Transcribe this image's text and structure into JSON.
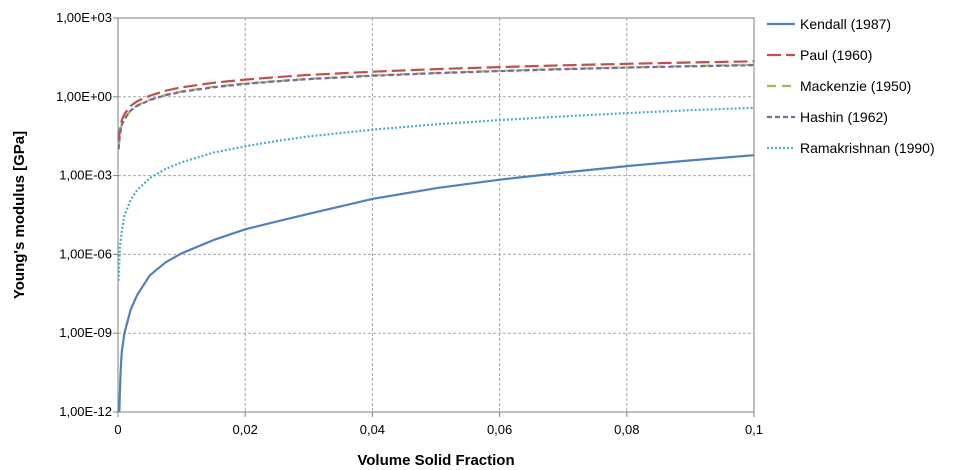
{
  "chart_data": {
    "type": "line",
    "xlabel": "Volume Solid Fraction",
    "ylabel": "Young's modulus [GPa]",
    "x_scale": "linear",
    "y_scale": "log",
    "xlim": [
      0,
      0.1
    ],
    "ylim": [
      1e-12,
      1000
    ],
    "x_ticks": [
      0,
      0.02,
      0.04,
      0.06,
      0.08,
      0.1
    ],
    "x_tick_labels": [
      "0",
      "0,02",
      "0,04",
      "0,06",
      "0,08",
      "0,1"
    ],
    "y_ticks": [
      1e-12,
      1e-09,
      1e-06,
      0.001,
      1,
      1000
    ],
    "y_tick_labels": [
      "1,00E-12",
      "1,00E-09",
      "1,00E-06",
      "1,00E-03",
      "1,00E+00",
      "1,00E+03"
    ],
    "grid": true,
    "legend_position": "right",
    "series": [
      {
        "name": "Kendall (1987)",
        "color": "#4f81bd",
        "dash": "solid",
        "x": [
          0.0002,
          0.0004,
          0.0006,
          0.001,
          0.002,
          0.003,
          0.005,
          0.0075,
          0.01,
          0.015,
          0.02,
          0.025,
          0.03,
          0.04,
          0.05,
          0.06,
          0.07,
          0.08,
          0.09,
          0.1
        ],
        "y": [
          1e-12,
          3e-11,
          2e-10,
          1e-09,
          8e-09,
          2.8e-08,
          1.6e-07,
          5e-07,
          1.1e-06,
          3.5e-06,
          9e-06,
          1.8e-05,
          3.5e-05,
          0.00013,
          0.00033,
          0.0007,
          0.0013,
          0.0023,
          0.0038,
          0.006
        ]
      },
      {
        "name": "Paul (1960)",
        "color": "#c0504d",
        "dash": "long-dash",
        "x": [
          0.0001,
          0.0003,
          0.0006,
          0.001,
          0.002,
          0.003,
          0.005,
          0.0075,
          0.01,
          0.015,
          0.02,
          0.025,
          0.03,
          0.04,
          0.05,
          0.06,
          0.07,
          0.08,
          0.09,
          0.1
        ],
        "y": [
          0.02,
          0.06,
          0.13,
          0.22,
          0.45,
          0.68,
          1.1,
          1.7,
          2.3,
          3.4,
          4.5,
          5.6,
          6.8,
          9.0,
          11.3,
          13.5,
          15.8,
          18.0,
          20.3,
          22.5
        ]
      },
      {
        "name": "Mackenzie (1950)",
        "color": "#9bbb59",
        "dash": "dash",
        "x": [
          0.0001,
          0.0003,
          0.0006,
          0.001,
          0.002,
          0.003,
          0.005,
          0.0075,
          0.01,
          0.015,
          0.02,
          0.025,
          0.03,
          0.04,
          0.05,
          0.06,
          0.07,
          0.08,
          0.09,
          0.1
        ],
        "y": [
          0.012,
          0.04,
          0.09,
          0.15,
          0.31,
          0.47,
          0.78,
          1.2,
          1.6,
          2.4,
          3.2,
          4.0,
          4.8,
          6.5,
          8.1,
          9.8,
          11.5,
          13.2,
          14.9,
          16.5
        ]
      },
      {
        "name": "Hashin (1962)",
        "color": "#8064a2",
        "dash": "short-dash",
        "x": [
          0.0001,
          0.0003,
          0.0006,
          0.001,
          0.002,
          0.003,
          0.005,
          0.0075,
          0.01,
          0.015,
          0.02,
          0.025,
          0.03,
          0.04,
          0.05,
          0.06,
          0.07,
          0.08,
          0.09,
          0.1
        ],
        "y": [
          0.01,
          0.035,
          0.085,
          0.14,
          0.3,
          0.45,
          0.75,
          1.15,
          1.55,
          2.3,
          3.1,
          3.9,
          4.7,
          6.3,
          7.9,
          9.5,
          11.2,
          12.9,
          14.5,
          16.0
        ]
      },
      {
        "name": "Ramakrishnan (1990)",
        "color": "#4bacc6",
        "dash": "dot",
        "x": [
          0.0001,
          0.0003,
          0.0006,
          0.001,
          0.002,
          0.003,
          0.005,
          0.0075,
          0.01,
          0.015,
          0.02,
          0.025,
          0.03,
          0.04,
          0.05,
          0.06,
          0.07,
          0.08,
          0.09,
          0.1
        ],
        "y": [
          1e-07,
          2e-06,
          8e-06,
          3e-05,
          0.00012,
          0.00028,
          0.0008,
          0.0018,
          0.0032,
          0.0075,
          0.013,
          0.021,
          0.031,
          0.056,
          0.09,
          0.13,
          0.18,
          0.24,
          0.31,
          0.38
        ]
      }
    ]
  }
}
